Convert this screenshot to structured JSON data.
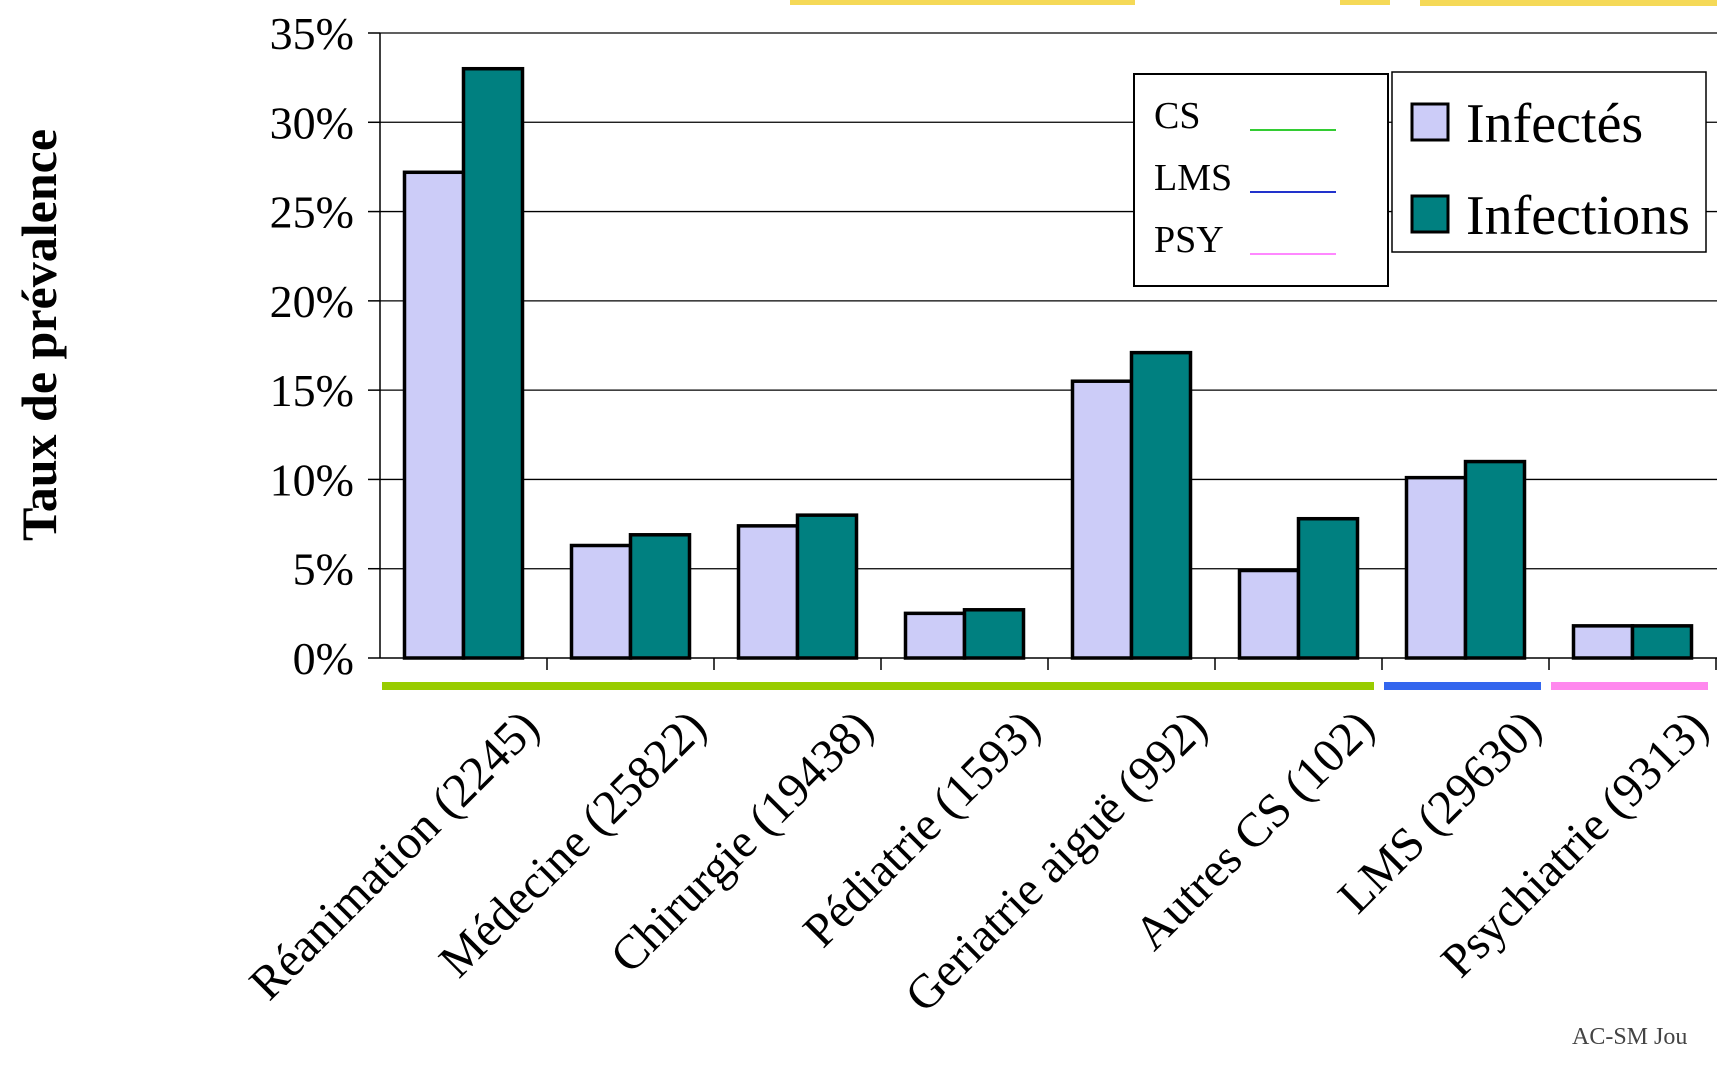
{
  "chart_data": {
    "type": "bar",
    "ylabel": "Taux de prévalence",
    "xlabel": "",
    "ylim": [
      0,
      35
    ],
    "yticks": [
      "0%",
      "5%",
      "10%",
      "15%",
      "20%",
      "25%",
      "30%",
      "35%"
    ],
    "grid": true,
    "categories": [
      "Réanimation (2245)",
      "Médecine (25822)",
      "Chirurgie (19438)",
      "Pédiatrie (1593)",
      "Geriatrie aiguë (992)",
      "Autres CS (102)",
      "LMS (29630)",
      "Psychiatrie (9313)"
    ],
    "series": [
      {
        "name": "Infectés",
        "color": "#ccccf8",
        "values": [
          27.2,
          6.3,
          7.4,
          2.5,
          15.5,
          4.9,
          10.1,
          1.8
        ]
      },
      {
        "name": "Infections",
        "color": "#008080",
        "values": [
          33.0,
          6.9,
          8.0,
          2.7,
          17.1,
          7.8,
          11.0,
          1.8
        ]
      }
    ],
    "legend": {
      "placement": "top-right",
      "entries": [
        "Infectés",
        "Infections"
      ]
    },
    "group_legend": {
      "placement": "top-right",
      "entries": [
        {
          "label": "CS",
          "color": "#33cc33"
        },
        {
          "label": "LMS",
          "color": "#2233cc"
        },
        {
          "label": "PSY",
          "color": "#ff88ff"
        }
      ]
    },
    "group_bars": [
      {
        "group": "CS",
        "color": "#99cc00",
        "from": 0,
        "to": 5
      },
      {
        "group": "LMS",
        "color": "#3366ee",
        "from": 6,
        "to": 6
      },
      {
        "group": "PSY",
        "color": "#ff88ee",
        "from": 7,
        "to": 7
      }
    ],
    "footer": "AC-SM Jou"
  }
}
